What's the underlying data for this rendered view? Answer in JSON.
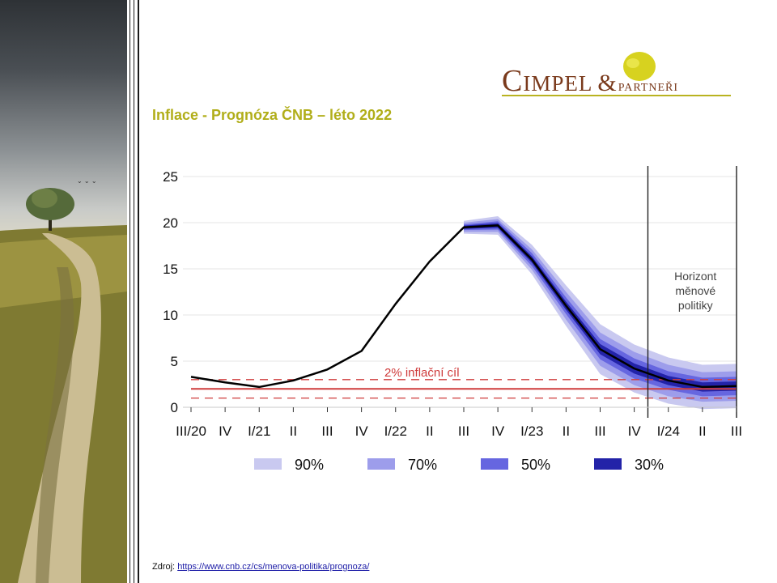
{
  "slide": {
    "title": "Inflace - Prognóza ČNB – léto 2022",
    "source_label": "Zdroj:",
    "source_url_text": "https://www.cnb.cz/cs/menova-politika/prognoza/"
  },
  "logo": {
    "main": "Cimpel",
    "amp": "&",
    "sub": "partneři"
  },
  "colors": {
    "band90": "#c9c9f0",
    "band70": "#9d9deb",
    "band50": "#6666e0",
    "band30": "#2323a8",
    "target": "#cf3b3b",
    "line": "#000000",
    "title": "#b1ae1a"
  },
  "chart_data": {
    "type": "area",
    "title": "",
    "xlabel": "",
    "ylabel": "",
    "ylim": [
      0,
      25
    ],
    "yticks": [
      0,
      5,
      10,
      15,
      20,
      25
    ],
    "categories": [
      "III/20",
      "IV",
      "I/21",
      "II",
      "III",
      "IV",
      "I/22",
      "II",
      "III",
      "IV",
      "I/23",
      "II",
      "III",
      "IV",
      "I/24",
      "II",
      "III"
    ],
    "series": [
      {
        "name": "Inflace",
        "values": [
          3.3,
          2.7,
          2.2,
          2.9,
          4.1,
          6.1,
          11.2,
          15.8,
          19.5,
          19.7,
          16.0,
          11.0,
          6.3,
          4.2,
          2.9,
          2.2,
          2.3
        ]
      }
    ],
    "fan_start_index": 8,
    "fan_halfwidth": {
      "p90": [
        0,
        0,
        0,
        0,
        0,
        0,
        0,
        0,
        0.7,
        1.0,
        1.6,
        2.2,
        2.7,
        2.6,
        2.5,
        2.4,
        2.4
      ],
      "p70": [
        0,
        0,
        0,
        0,
        0,
        0,
        0,
        0,
        0.5,
        0.7,
        1.1,
        1.5,
        1.8,
        1.8,
        1.7,
        1.6,
        1.6
      ],
      "p50": [
        0,
        0,
        0,
        0,
        0,
        0,
        0,
        0,
        0.3,
        0.45,
        0.7,
        0.9,
        1.1,
        1.1,
        1.0,
        1.0,
        1.0
      ],
      "p30": [
        0,
        0,
        0,
        0,
        0,
        0,
        0,
        0,
        0.18,
        0.25,
        0.35,
        0.45,
        0.55,
        0.55,
        0.5,
        0.5,
        0.5
      ]
    },
    "target": {
      "label": "2% inflační cíl",
      "value": 2,
      "upper": 3,
      "lower": 1
    },
    "horizon": {
      "label_lines": [
        "Horizont",
        "měnové",
        "politiky"
      ],
      "from_index": 13.4,
      "to_index": 16
    },
    "legend": [
      {
        "label": "90%",
        "key": "band90"
      },
      {
        "label": "70%",
        "key": "band70"
      },
      {
        "label": "50%",
        "key": "band50"
      },
      {
        "label": "30%",
        "key": "band30"
      }
    ]
  }
}
